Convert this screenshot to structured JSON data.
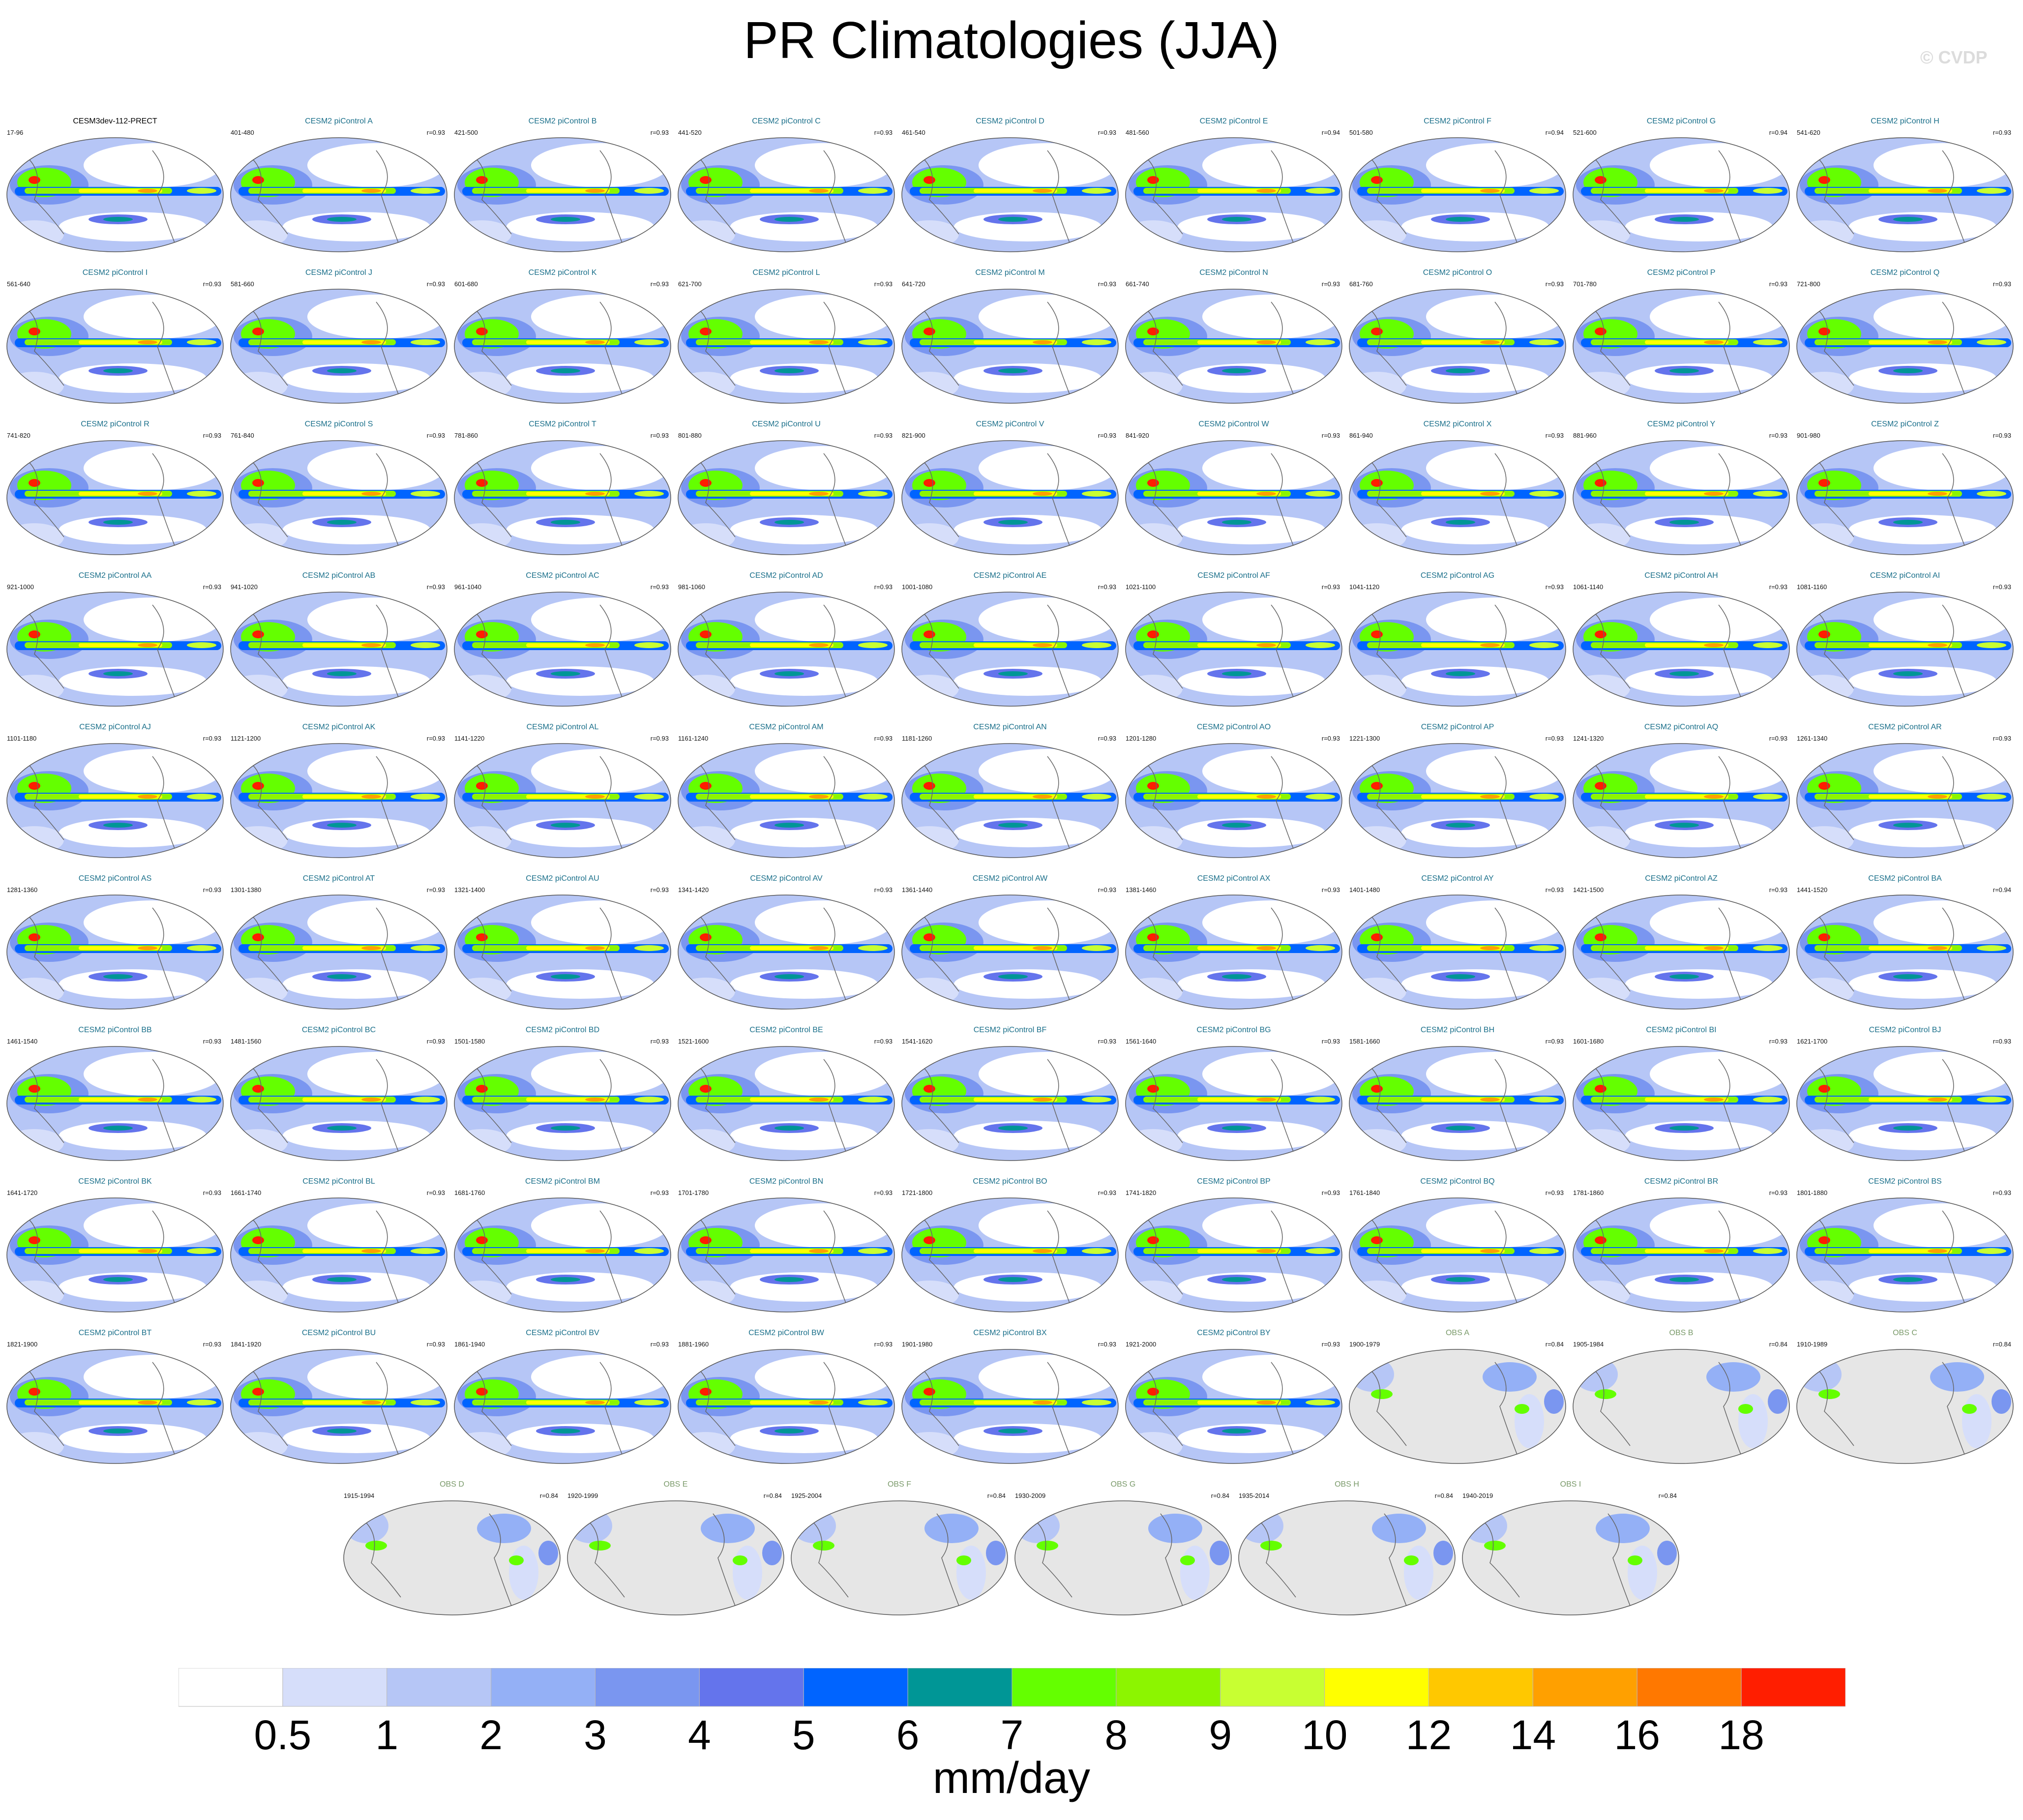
{
  "title": "PR Climatologies (JJA)",
  "credit": "© CVDP",
  "colorbar": {
    "units": "mm/day",
    "ticks": [
      "0.5",
      "1",
      "2",
      "3",
      "4",
      "5",
      "6",
      "7",
      "8",
      "9",
      "10",
      "12",
      "14",
      "16",
      "18"
    ],
    "colors": [
      "#ffffff",
      "#d6defa",
      "#b6c6f6",
      "#94b0f6",
      "#7a96f0",
      "#6474ec",
      "#0064ff",
      "#009696",
      "#64ff00",
      "#8cf500",
      "#c8ff32",
      "#ffff00",
      "#ffc800",
      "#ffa000",
      "#ff7800",
      "#ff1e00"
    ]
  },
  "panels": [
    {
      "label": "CESM3dev-112-PRECT",
      "years": "17-96",
      "r": "",
      "type": "model",
      "label_color": "#000000"
    },
    {
      "label": "CESM2 piControl A",
      "years": "401-480",
      "r": "r=0.93",
      "type": "model"
    },
    {
      "label": "CESM2 piControl B",
      "years": "421-500",
      "r": "r=0.93",
      "type": "model"
    },
    {
      "label": "CESM2 piControl C",
      "years": "441-520",
      "r": "r=0.93",
      "type": "model"
    },
    {
      "label": "CESM2 piControl D",
      "years": "461-540",
      "r": "r=0.93",
      "type": "model"
    },
    {
      "label": "CESM2 piControl E",
      "years": "481-560",
      "r": "r=0.94",
      "type": "model"
    },
    {
      "label": "CESM2 piControl F",
      "years": "501-580",
      "r": "r=0.94",
      "type": "model"
    },
    {
      "label": "CESM2 piControl G",
      "years": "521-600",
      "r": "r=0.94",
      "type": "model"
    },
    {
      "label": "CESM2 piControl H",
      "years": "541-620",
      "r": "r=0.93",
      "type": "model"
    },
    {
      "label": "CESM2 piControl I",
      "years": "561-640",
      "r": "r=0.93",
      "type": "model"
    },
    {
      "label": "CESM2 piControl J",
      "years": "581-660",
      "r": "r=0.93",
      "type": "model"
    },
    {
      "label": "CESM2 piControl K",
      "years": "601-680",
      "r": "r=0.93",
      "type": "model"
    },
    {
      "label": "CESM2 piControl L",
      "years": "621-700",
      "r": "r=0.93",
      "type": "model"
    },
    {
      "label": "CESM2 piControl M",
      "years": "641-720",
      "r": "r=0.93",
      "type": "model"
    },
    {
      "label": "CESM2 piControl N",
      "years": "661-740",
      "r": "r=0.93",
      "type": "model"
    },
    {
      "label": "CESM2 piControl O",
      "years": "681-760",
      "r": "r=0.93",
      "type": "model"
    },
    {
      "label": "CESM2 piControl P",
      "years": "701-780",
      "r": "r=0.93",
      "type": "model"
    },
    {
      "label": "CESM2 piControl Q",
      "years": "721-800",
      "r": "r=0.93",
      "type": "model"
    },
    {
      "label": "CESM2 piControl R",
      "years": "741-820",
      "r": "r=0.93",
      "type": "model"
    },
    {
      "label": "CESM2 piControl S",
      "years": "761-840",
      "r": "r=0.93",
      "type": "model"
    },
    {
      "label": "CESM2 piControl T",
      "years": "781-860",
      "r": "r=0.93",
      "type": "model"
    },
    {
      "label": "CESM2 piControl U",
      "years": "801-880",
      "r": "r=0.93",
      "type": "model"
    },
    {
      "label": "CESM2 piControl V",
      "years": "821-900",
      "r": "r=0.93",
      "type": "model"
    },
    {
      "label": "CESM2 piControl W",
      "years": "841-920",
      "r": "r=0.93",
      "type": "model"
    },
    {
      "label": "CESM2 piControl X",
      "years": "861-940",
      "r": "r=0.93",
      "type": "model"
    },
    {
      "label": "CESM2 piControl Y",
      "years": "881-960",
      "r": "r=0.93",
      "type": "model"
    },
    {
      "label": "CESM2 piControl Z",
      "years": "901-980",
      "r": "r=0.93",
      "type": "model"
    },
    {
      "label": "CESM2 piControl AA",
      "years": "921-1000",
      "r": "r=0.93",
      "type": "model"
    },
    {
      "label": "CESM2 piControl AB",
      "years": "941-1020",
      "r": "r=0.93",
      "type": "model"
    },
    {
      "label": "CESM2 piControl AC",
      "years": "961-1040",
      "r": "r=0.93",
      "type": "model"
    },
    {
      "label": "CESM2 piControl AD",
      "years": "981-1060",
      "r": "r=0.93",
      "type": "model"
    },
    {
      "label": "CESM2 piControl AE",
      "years": "1001-1080",
      "r": "r=0.93",
      "type": "model"
    },
    {
      "label": "CESM2 piControl AF",
      "years": "1021-1100",
      "r": "r=0.93",
      "type": "model"
    },
    {
      "label": "CESM2 piControl AG",
      "years": "1041-1120",
      "r": "r=0.93",
      "type": "model"
    },
    {
      "label": "CESM2 piControl AH",
      "years": "1061-1140",
      "r": "r=0.93",
      "type": "model"
    },
    {
      "label": "CESM2 piControl AI",
      "years": "1081-1160",
      "r": "r=0.93",
      "type": "model"
    },
    {
      "label": "CESM2 piControl AJ",
      "years": "1101-1180",
      "r": "r=0.93",
      "type": "model"
    },
    {
      "label": "CESM2 piControl AK",
      "years": "1121-1200",
      "r": "r=0.93",
      "type": "model"
    },
    {
      "label": "CESM2 piControl AL",
      "years": "1141-1220",
      "r": "r=0.93",
      "type": "model"
    },
    {
      "label": "CESM2 piControl AM",
      "years": "1161-1240",
      "r": "r=0.93",
      "type": "model"
    },
    {
      "label": "CESM2 piControl AN",
      "years": "1181-1260",
      "r": "r=0.93",
      "type": "model"
    },
    {
      "label": "CESM2 piControl AO",
      "years": "1201-1280",
      "r": "r=0.93",
      "type": "model"
    },
    {
      "label": "CESM2 piControl AP",
      "years": "1221-1300",
      "r": "r=0.93",
      "type": "model"
    },
    {
      "label": "CESM2 piControl AQ",
      "years": "1241-1320",
      "r": "r=0.93",
      "type": "model"
    },
    {
      "label": "CESM2 piControl AR",
      "years": "1261-1340",
      "r": "r=0.93",
      "type": "model"
    },
    {
      "label": "CESM2 piControl AS",
      "years": "1281-1360",
      "r": "r=0.93",
      "type": "model"
    },
    {
      "label": "CESM2 piControl AT",
      "years": "1301-1380",
      "r": "r=0.93",
      "type": "model"
    },
    {
      "label": "CESM2 piControl AU",
      "years": "1321-1400",
      "r": "r=0.93",
      "type": "model"
    },
    {
      "label": "CESM2 piControl AV",
      "years": "1341-1420",
      "r": "r=0.93",
      "type": "model"
    },
    {
      "label": "CESM2 piControl AW",
      "years": "1361-1440",
      "r": "r=0.93",
      "type": "model"
    },
    {
      "label": "CESM2 piControl AX",
      "years": "1381-1460",
      "r": "r=0.93",
      "type": "model"
    },
    {
      "label": "CESM2 piControl AY",
      "years": "1401-1480",
      "r": "r=0.93",
      "type": "model"
    },
    {
      "label": "CESM2 piControl AZ",
      "years": "1421-1500",
      "r": "r=0.93",
      "type": "model"
    },
    {
      "label": "CESM2 piControl BA",
      "years": "1441-1520",
      "r": "r=0.94",
      "type": "model"
    },
    {
      "label": "CESM2 piControl BB",
      "years": "1461-1540",
      "r": "r=0.93",
      "type": "model"
    },
    {
      "label": "CESM2 piControl BC",
      "years": "1481-1560",
      "r": "r=0.93",
      "type": "model"
    },
    {
      "label": "CESM2 piControl BD",
      "years": "1501-1580",
      "r": "r=0.93",
      "type": "model"
    },
    {
      "label": "CESM2 piControl BE",
      "years": "1521-1600",
      "r": "r=0.93",
      "type": "model"
    },
    {
      "label": "CESM2 piControl BF",
      "years": "1541-1620",
      "r": "r=0.93",
      "type": "model"
    },
    {
      "label": "CESM2 piControl BG",
      "years": "1561-1640",
      "r": "r=0.93",
      "type": "model"
    },
    {
      "label": "CESM2 piControl BH",
      "years": "1581-1660",
      "r": "r=0.93",
      "type": "model"
    },
    {
      "label": "CESM2 piControl BI",
      "years": "1601-1680",
      "r": "r=0.93",
      "type": "model"
    },
    {
      "label": "CESM2 piControl BJ",
      "years": "1621-1700",
      "r": "r=0.93",
      "type": "model"
    },
    {
      "label": "CESM2 piControl BK",
      "years": "1641-1720",
      "r": "r=0.93",
      "type": "model"
    },
    {
      "label": "CESM2 piControl BL",
      "years": "1661-1740",
      "r": "r=0.93",
      "type": "model"
    },
    {
      "label": "CESM2 piControl BM",
      "years": "1681-1760",
      "r": "r=0.93",
      "type": "model"
    },
    {
      "label": "CESM2 piControl BN",
      "years": "1701-1780",
      "r": "r=0.93",
      "type": "model"
    },
    {
      "label": "CESM2 piControl BO",
      "years": "1721-1800",
      "r": "r=0.93",
      "type": "model"
    },
    {
      "label": "CESM2 piControl BP",
      "years": "1741-1820",
      "r": "r=0.93",
      "type": "model"
    },
    {
      "label": "CESM2 piControl BQ",
      "years": "1761-1840",
      "r": "r=0.93",
      "type": "model"
    },
    {
      "label": "CESM2 piControl BR",
      "years": "1781-1860",
      "r": "r=0.93",
      "type": "model"
    },
    {
      "label": "CESM2 piControl BS",
      "years": "1801-1880",
      "r": "r=0.93",
      "type": "model"
    },
    {
      "label": "CESM2 piControl BT",
      "years": "1821-1900",
      "r": "r=0.93",
      "type": "model"
    },
    {
      "label": "CESM2 piControl BU",
      "years": "1841-1920",
      "r": "r=0.93",
      "type": "model"
    },
    {
      "label": "CESM2 piControl BV",
      "years": "1861-1940",
      "r": "r=0.93",
      "type": "model"
    },
    {
      "label": "CESM2 piControl BW",
      "years": "1881-1960",
      "r": "r=0.93",
      "type": "model"
    },
    {
      "label": "CESM2 piControl BX",
      "years": "1901-1980",
      "r": "r=0.93",
      "type": "model"
    },
    {
      "label": "CESM2 piControl BY",
      "years": "1921-2000",
      "r": "r=0.93",
      "type": "model"
    },
    {
      "label": "OBS A",
      "years": "1900-1979",
      "r": "r=0.84",
      "type": "obs"
    },
    {
      "label": "OBS B",
      "years": "1905-1984",
      "r": "r=0.84",
      "type": "obs"
    },
    {
      "label": "OBS C",
      "years": "1910-1989",
      "r": "r=0.84",
      "type": "obs"
    },
    {
      "label": "OBS D",
      "years": "1915-1994",
      "r": "r=0.84",
      "type": "obs"
    },
    {
      "label": "OBS E",
      "years": "1920-1999",
      "r": "r=0.84",
      "type": "obs"
    },
    {
      "label": "OBS F",
      "years": "1925-2004",
      "r": "r=0.84",
      "type": "obs"
    },
    {
      "label": "OBS G",
      "years": "1930-2009",
      "r": "r=0.84",
      "type": "obs"
    },
    {
      "label": "OBS H",
      "years": "1935-2014",
      "r": "r=0.84",
      "type": "obs"
    },
    {
      "label": "OBS I",
      "years": "1940-2019",
      "r": "r=0.84",
      "type": "obs"
    }
  ],
  "style": {
    "model_label_color": "#1a6f8a",
    "obs_label_color": "#7a9a6a",
    "ocean_fill_model": "#b6c6f6",
    "land_fill_obs": "#e6e6e6"
  }
}
